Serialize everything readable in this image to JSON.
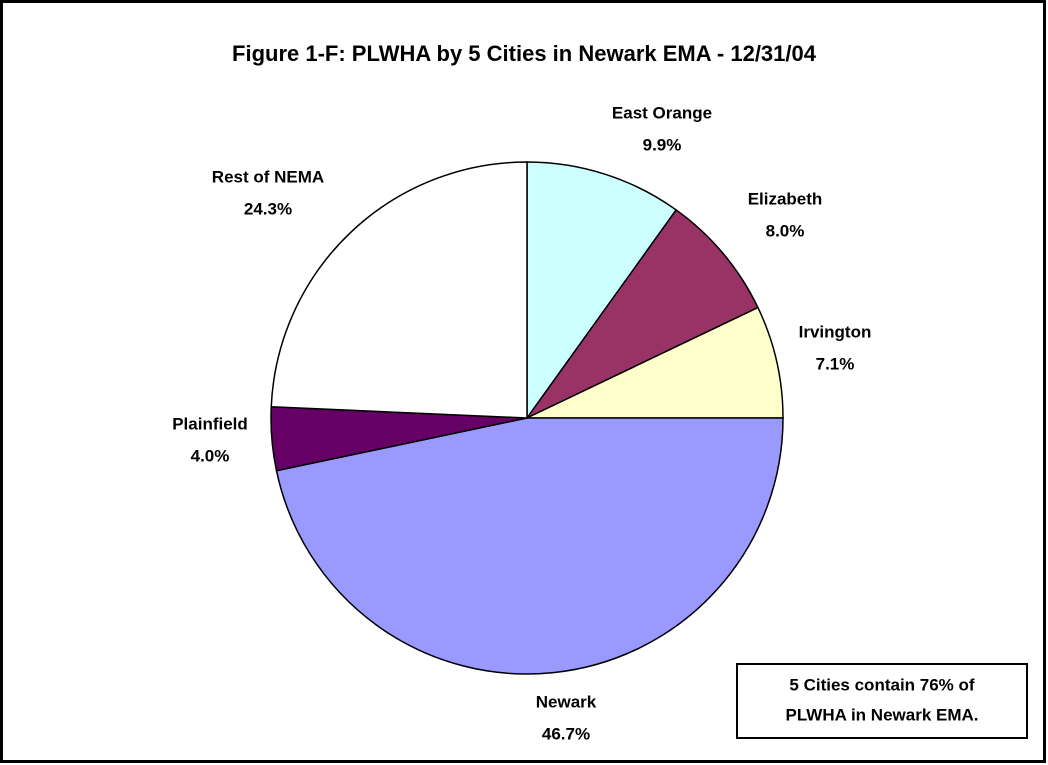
{
  "chart_data": {
    "type": "pie",
    "title": "Figure 1-F:  PLWHA by 5 Cities in Newark EMA - 12/31/04",
    "categories": [
      "East Orange",
      "Elizabeth",
      "Irvington",
      "Newark",
      "Plainfield",
      "Rest of NEMA"
    ],
    "values": [
      9.9,
      8,
      7.1,
      46.7,
      4,
      24.3
    ],
    "value_labels": [
      "9.9%",
      "8.0%",
      "7.1%",
      "46.7%",
      "4.0%",
      "24.3%"
    ],
    "colors": [
      "#ccffff",
      "#993366",
      "#ffffcc",
      "#9999ff",
      "#660066",
      "#ffffff"
    ],
    "annotation": [
      "5 Cities contain 76% of",
      "PLWHA in Newark EMA."
    ]
  }
}
